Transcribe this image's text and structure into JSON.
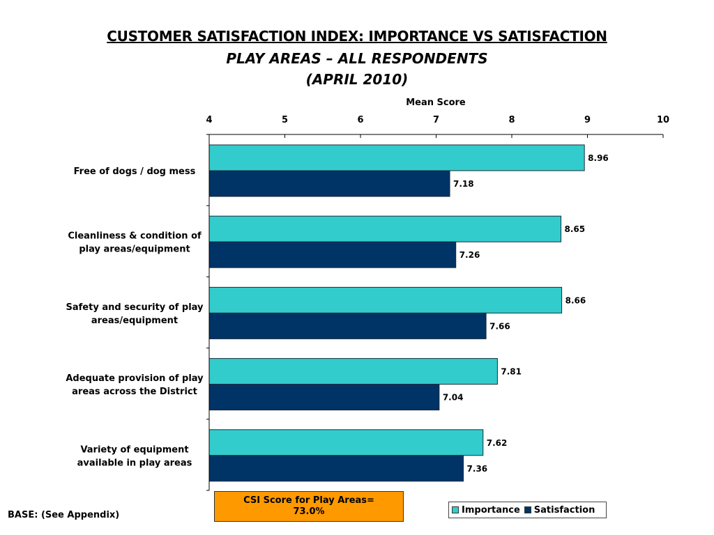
{
  "header": {
    "title": "CUSTOMER SATISFACTION INDEX: IMPORTANCE VS SATISFACTION",
    "subtitle": "PLAY AREAS – ALL RESPONDENTS",
    "date": "(APRIL 2010)"
  },
  "chart_data": {
    "type": "bar",
    "orientation": "horizontal",
    "title": "CUSTOMER SATISFACTION INDEX: IMPORTANCE VS SATISFACTION",
    "xlabel": "Mean Score",
    "ylabel": "",
    "xlim": [
      4,
      10
    ],
    "ticks": [
      "4",
      "5",
      "6",
      "7",
      "8",
      "9",
      "10"
    ],
    "tick_values": [
      4,
      5,
      6,
      7,
      8,
      9,
      10
    ],
    "axis_position": "top",
    "grid": false,
    "legend_position": "bottom-right",
    "categories": [
      [
        "Free of dogs / dog mess"
      ],
      [
        "Cleanliness & condition of",
        "play areas/equipment"
      ],
      [
        "Safety and security of play",
        "areas/equipment"
      ],
      [
        "Adequate provision of play",
        "areas across the District"
      ],
      [
        "Variety of equipment",
        "available in play areas"
      ]
    ],
    "series": [
      {
        "name": "Importance",
        "color": "#33cccc",
        "values": [
          8.96,
          8.65,
          8.66,
          7.81,
          7.62
        ],
        "labels": [
          "8.96",
          "8.65",
          "8.66",
          "7.81",
          "7.62"
        ]
      },
      {
        "name": "Satisfaction",
        "color": "#003366",
        "values": [
          7.18,
          7.26,
          7.66,
          7.04,
          7.36
        ],
        "labels": [
          "7.18",
          "7.26",
          "7.66",
          "7.04",
          "7.36"
        ]
      }
    ]
  },
  "annotations": {
    "csi_line1": "CSI Score for Play Areas=",
    "csi_line2": "73.0%",
    "csi_color": "#ff9900",
    "base_note": "BASE: (See Appendix)"
  },
  "legend": {
    "items": [
      "Importance",
      "Satisfaction"
    ]
  }
}
